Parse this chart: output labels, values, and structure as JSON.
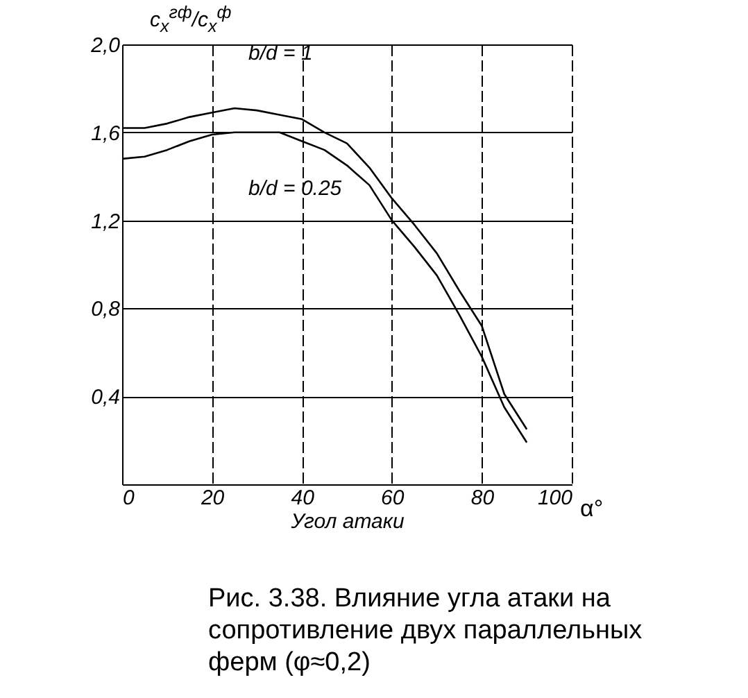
{
  "chart_data": {
    "type": "line",
    "title": "Рис. 3.38. Влияние угла атаки на сопротивление двух параллельных ферм (φ≈0,2)",
    "xlabel": "Угол атаки",
    "ylabel": "c$_{x}$$^{гф}$/c$_{x}$$^{ф}$",
    "annotations": [
      "α°"
    ],
    "x": [
      0,
      5,
      10,
      15,
      20,
      25,
      30,
      35,
      40,
      45,
      50,
      55,
      60,
      65,
      70,
      75,
      80,
      85,
      90
    ],
    "series": [
      {
        "name": "b/d = 1",
        "color": "#000000",
        "values": [
          1.62,
          1.62,
          1.64,
          1.67,
          1.69,
          1.71,
          1.7,
          1.68,
          1.66,
          1.6,
          1.55,
          1.44,
          1.3,
          1.18,
          1.05,
          0.88,
          0.72,
          0.41,
          0.25
        ]
      },
      {
        "name": "b/d = 0.25",
        "color": "#000000",
        "values": [
          1.48,
          1.49,
          1.52,
          1.56,
          1.59,
          1.6,
          1.6,
          1.6,
          1.56,
          1.52,
          1.45,
          1.36,
          1.2,
          1.08,
          0.95,
          0.77,
          0.58,
          0.35,
          0.19
        ]
      }
    ],
    "xlim": [
      0,
      100
    ],
    "xticks": [
      0,
      20,
      40,
      60,
      80,
      100
    ],
    "ylim": [
      0,
      2.0
    ],
    "yticks": [
      {
        "value": 0,
        "label": null
      },
      {
        "value": 0.4,
        "label": "0,4"
      },
      {
        "value": 0.8,
        "label": "0,8"
      },
      {
        "value": 1.2,
        "label": "1,2"
      },
      {
        "value": 1.6,
        "label": "1,6"
      },
      {
        "value": 2.0,
        "label": "2,0"
      }
    ],
    "grid": true,
    "legend": false,
    "marker": "none",
    "line_style": "solid"
  }
}
